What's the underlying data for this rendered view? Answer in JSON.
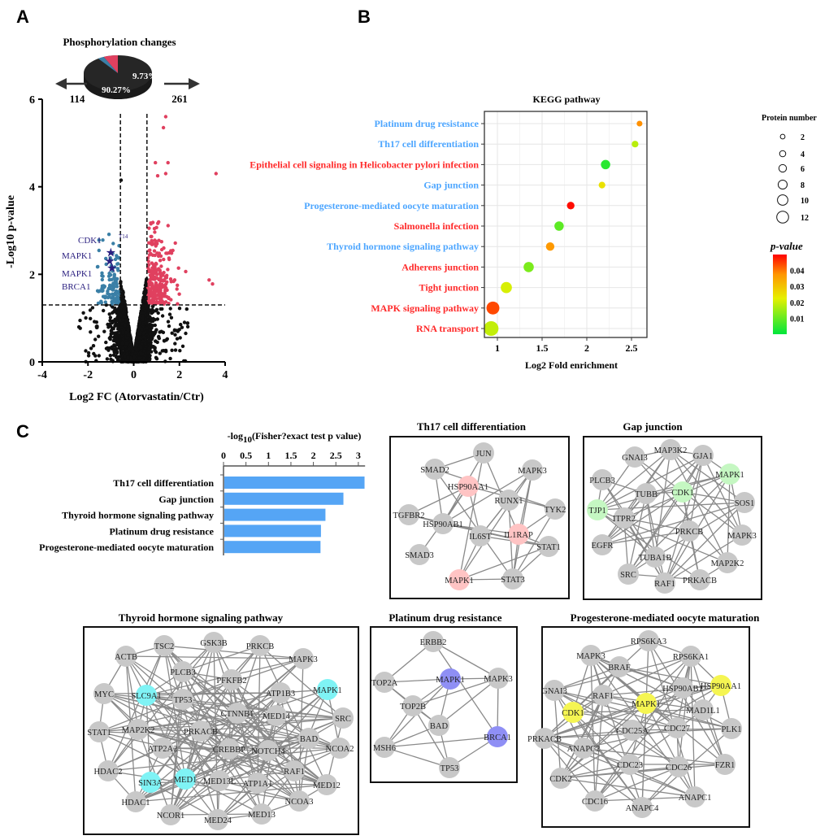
{
  "panel_letters": [
    "A",
    "B",
    "C"
  ],
  "chart_data": [
    {
      "type": "scatter",
      "panel": "A",
      "title": "Phosphorylation changes",
      "xlabel": "Log2 FC (Atorvastatin/Ctr)",
      "ylabel": "-Log10 p-value",
      "xlim": [
        -4,
        4
      ],
      "ylim": [
        0,
        6
      ],
      "xticks": [
        "-4",
        "-2",
        "0",
        "2",
        "4"
      ],
      "yticks": [
        "0",
        "2",
        "4",
        "6"
      ],
      "fc_threshold": 0.58,
      "pvalue_threshold_log10": 1.3,
      "down_count": "114",
      "up_count": "261",
      "colors": {
        "down": "#3a7fa6",
        "up": "#e0405f",
        "ns": "#111111",
        "label": "#2b2080"
      },
      "pie": {
        "changed_pct": "9.73%",
        "unchanged_pct": "90.27%",
        "changed_value": 9.73,
        "unchanged_value": 90.27
      },
      "annotations": [
        "CDK1",
        "MAPK1",
        "MAPK1",
        "BRCA1"
      ],
      "site_labels": [
        "T14"
      ]
    },
    {
      "type": "scatter",
      "panel": "B",
      "title": "KEGG pathway",
      "xlabel": "Log2 Fold enrichment",
      "xticks": [
        1,
        1.5,
        2,
        2.5
      ],
      "xlim": [
        0.85,
        2.68
      ],
      "size_legend_title": "Protein number",
      "size_legend": [
        2,
        4,
        6,
        8,
        10,
        12
      ],
      "color_legend_title": "p-value",
      "color_legend_ticks": [
        "0.04",
        "0.03",
        "0.02",
        "0.01"
      ],
      "color_range": [
        0,
        0.05
      ],
      "grid": true,
      "categories": [
        {
          "label": "Platinum drug resistance",
          "color": "#4da6ff",
          "x": 2.59,
          "size": 3,
          "p": 0.038
        },
        {
          "label": "Th17 cell differentiation",
          "color": "#4da6ff",
          "x": 2.54,
          "size": 4,
          "p": 0.018
        },
        {
          "label": "Epithelial cell signaling in Helicobacter pylori infection",
          "color": "#ff2a2a",
          "x": 2.21,
          "size": 7,
          "p": 0.004
        },
        {
          "label": "Gap junction",
          "color": "#4da6ff",
          "x": 2.17,
          "size": 4,
          "p": 0.025
        },
        {
          "label": "Progesterone-mediated oocyte maturation",
          "color": "#4da6ff",
          "x": 1.82,
          "size": 5,
          "p": 0.049
        },
        {
          "label": "Salmonella infection",
          "color": "#ff2a2a",
          "x": 1.69,
          "size": 7,
          "p": 0.009
        },
        {
          "label": "Thyroid hormone signaling pathway",
          "color": "#4da6ff",
          "x": 1.59,
          "size": 6,
          "p": 0.037
        },
        {
          "label": "Adherens junction",
          "color": "#ff2a2a",
          "x": 1.35,
          "size": 8,
          "p": 0.012
        },
        {
          "label": "Tight junction",
          "color": "#ff2a2a",
          "x": 1.1,
          "size": 9,
          "p": 0.021
        },
        {
          "label": "MAPK signaling pathway",
          "color": "#ff2a2a",
          "x": 0.95,
          "size": 11,
          "p": 0.044
        },
        {
          "label": "RNA transport",
          "color": "#ff2a2a",
          "x": 0.93,
          "size": 13,
          "p": 0.019
        }
      ]
    },
    {
      "type": "bar",
      "panel": "C",
      "orientation": "horizontal",
      "xlabel_main": "-log",
      "xlabel_sub": "10",
      "xlabel_rest": "(Fisher?exact test p value)",
      "xticks": [
        "0",
        "0.5",
        "1",
        "1.5",
        "2",
        "2.5",
        "3"
      ],
      "xlim": [
        0,
        3.15
      ],
      "bar_color": "#55a5f5",
      "categories": [
        "Th17 cell differentiation",
        "Gap junction",
        "Thyroid hormone signaling pathway",
        "Platinum drug resistance",
        "Progesterone-mediated oocyte maturation"
      ],
      "values": [
        3.12,
        2.65,
        2.25,
        2.15,
        2.14
      ]
    }
  ],
  "networks": [
    {
      "title": "Th17 cell differentiation",
      "highlight_color": "#ffc4c4",
      "nodes": [
        "JUN",
        "SMAD2",
        "MAPK3",
        "HSP90AA1",
        "RUNX1",
        "TYK2",
        "TGFBR2",
        "HSP90AB1",
        "IL6ST",
        "IL1RAP",
        "STAT1",
        "SMAD3",
        "MAPK1",
        "STAT3"
      ],
      "highlighted": [
        "HSP90AA1",
        "IL1RAP",
        "MAPK1"
      ]
    },
    {
      "title": "Gap junction",
      "highlight_color": "#c5f7c2",
      "nodes": [
        "GNAI3",
        "MAP3K2",
        "GJA1",
        "MAPK1",
        "PLCB3",
        "TUBB",
        "CDK1",
        "SOS1",
        "TJP1",
        "ITPR2",
        "PRKCB",
        "MAPK3",
        "EGFR",
        "TUBA1B",
        "MAP2K2",
        "SRC",
        "RAF1",
        "PRKACB"
      ],
      "highlighted": [
        "MAPK1",
        "CDK1",
        "TJP1"
      ]
    },
    {
      "title": "Thyroid hormone signaling pathway",
      "highlight_color": "#7ff3f5",
      "nodes": [
        "ACTB",
        "TSC2",
        "GSK3B",
        "PRKCB",
        "MAPK3",
        "PLCB3",
        "PFKFB2",
        "MYC",
        "SLC9A1",
        "TP53",
        "ATP1B3",
        "MAPK1",
        "CTNNB1",
        "MED14",
        "SRC",
        "STAT1",
        "MAP2K2",
        "PRKACB",
        "BAD",
        "ATP2A2",
        "CREBBP",
        "NOTCH4",
        "NCOA2",
        "HDAC2",
        "RAF1",
        "SIN3A",
        "MED1",
        "MED13L",
        "ATP1A1",
        "MED12",
        "HDAC1",
        "NCOA3",
        "NCOR1",
        "MED24",
        "MED13"
      ],
      "highlighted": [
        "SLC9A1",
        "MAPK1",
        "SIN3A",
        "MED1"
      ]
    },
    {
      "title": "Platinum drug resistance",
      "highlight_color": "#8f8ff5",
      "nodes": [
        "ERBB2",
        "TOP2A",
        "MAPK1",
        "MAPK3",
        "TOP2B",
        "BAD",
        "BRCA1",
        "MSH6",
        "TP53"
      ],
      "highlighted": [
        "MAPK1",
        "BRCA1"
      ]
    },
    {
      "title": "Progesterone-mediated oocyte maturation",
      "highlight_color": "#f5f552",
      "nodes": [
        "RPS6KA3",
        "MAPK3",
        "RPS6KA1",
        "BRAF",
        "GNAI3",
        "RAF1",
        "HSP90AB1",
        "HSP90AA1",
        "MAPK1",
        "CDK1",
        "MAD1L1",
        "CDC25A",
        "CDC27",
        "PLK1",
        "PRKACB",
        "ANAPC2",
        "CDC23",
        "CDC26",
        "FZR1",
        "CDK2",
        "CDC16",
        "ANAPC4",
        "ANAPC1"
      ],
      "highlighted": [
        "HSP90AA1",
        "MAPK1",
        "CDK1"
      ]
    }
  ]
}
